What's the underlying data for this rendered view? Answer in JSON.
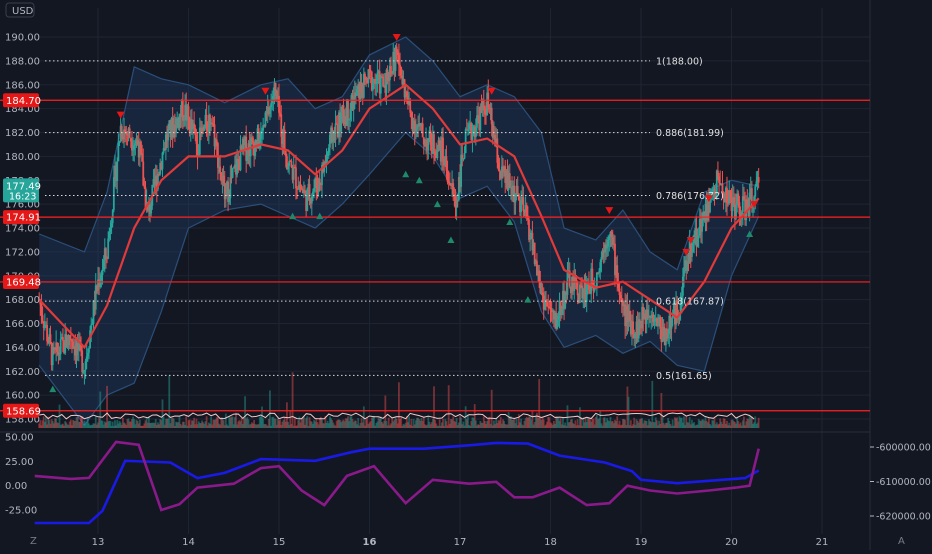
{
  "colors": {
    "background": "#131722",
    "grid": "#1f2433",
    "up": "#26a69a",
    "down": "#ef5350",
    "band_fill": "#1e3a5f",
    "band_line": "#2a4f7a",
    "ma": "#e03a3a",
    "level_line": "#ff2020",
    "fib_line": "#d8d8d8",
    "axis_text": "#b2b5be",
    "blue_series": "#1a1ae6",
    "purple_series": "#8a1a8a",
    "price_tag_green": "#26a69a",
    "price_tag_red": "#e51717"
  },
  "currency_label": "USD",
  "price_axis": {
    "ticks": [
      "190.00",
      "188.00",
      "186.00",
      "184.00",
      "182.00",
      "180.00",
      "178.00",
      "176.00",
      "174.00",
      "172.00",
      "170.00",
      "168.00",
      "166.00",
      "164.00",
      "162.00",
      "160.00",
      "158.00"
    ],
    "current_price": "177.49",
    "countdown": "16:23",
    "level_tags": [
      "184.70",
      "174.91",
      "169.48",
      "158.69"
    ]
  },
  "fib_labels": [
    "1(188.00)",
    "0.886(181.99)",
    "0.786(176.72)",
    "0.618(167.87)",
    "0.5(161.65)"
  ],
  "indicator_axis_left": [
    "50.00",
    "25.00",
    "0.00",
    "-25.00"
  ],
  "indicator_axis_right": [
    "-600000.00",
    "-610000.00",
    "-620000.00"
  ],
  "time_axis": [
    "13",
    "14",
    "15",
    "16",
    "17",
    "18",
    "19",
    "20",
    "21"
  ],
  "corner_left": "Z",
  "corner_right": "A",
  "chart_data": {
    "type": "candlestick",
    "x_labels": [
      "13",
      "14",
      "15",
      "16",
      "17",
      "18",
      "19",
      "20",
      "21"
    ],
    "ylim": [
      157.5,
      191
    ],
    "close_path": [
      {
        "x": 12.35,
        "y": 168.0
      },
      {
        "x": 12.5,
        "y": 163.0
      },
      {
        "x": 12.7,
        "y": 165.0
      },
      {
        "x": 12.85,
        "y": 162.5
      },
      {
        "x": 13.0,
        "y": 169.5
      },
      {
        "x": 13.1,
        "y": 172.0
      },
      {
        "x": 13.25,
        "y": 182.5
      },
      {
        "x": 13.45,
        "y": 181.0
      },
      {
        "x": 13.55,
        "y": 175.0
      },
      {
        "x": 13.75,
        "y": 181.5
      },
      {
        "x": 13.95,
        "y": 184.0
      },
      {
        "x": 14.1,
        "y": 181.0
      },
      {
        "x": 14.25,
        "y": 183.5
      },
      {
        "x": 14.4,
        "y": 176.5
      },
      {
        "x": 14.6,
        "y": 180.5
      },
      {
        "x": 14.8,
        "y": 181.5
      },
      {
        "x": 14.95,
        "y": 185.5
      },
      {
        "x": 15.1,
        "y": 179.5
      },
      {
        "x": 15.3,
        "y": 176.5
      },
      {
        "x": 15.45,
        "y": 178.0
      },
      {
        "x": 15.6,
        "y": 182.0
      },
      {
        "x": 15.85,
        "y": 185.0
      },
      {
        "x": 16.0,
        "y": 186.5
      },
      {
        "x": 16.15,
        "y": 186.0
      },
      {
        "x": 16.3,
        "y": 188.5
      },
      {
        "x": 16.45,
        "y": 183.5
      },
      {
        "x": 16.6,
        "y": 181.5
      },
      {
        "x": 16.8,
        "y": 180.5
      },
      {
        "x": 16.95,
        "y": 176.0
      },
      {
        "x": 17.05,
        "y": 181.0
      },
      {
        "x": 17.3,
        "y": 184.5
      },
      {
        "x": 17.45,
        "y": 178.5
      },
      {
        "x": 17.6,
        "y": 177.0
      },
      {
        "x": 17.75,
        "y": 174.5
      },
      {
        "x": 17.9,
        "y": 168.5
      },
      {
        "x": 18.05,
        "y": 166.0
      },
      {
        "x": 18.2,
        "y": 169.5
      },
      {
        "x": 18.35,
        "y": 168.5
      },
      {
        "x": 18.5,
        "y": 170.0
      },
      {
        "x": 18.65,
        "y": 174.0
      },
      {
        "x": 18.8,
        "y": 167.0
      },
      {
        "x": 18.95,
        "y": 165.5
      },
      {
        "x": 19.1,
        "y": 167.5
      },
      {
        "x": 19.25,
        "y": 165.0
      },
      {
        "x": 19.4,
        "y": 167.0
      },
      {
        "x": 19.55,
        "y": 172.5
      },
      {
        "x": 19.7,
        "y": 175.0
      },
      {
        "x": 19.85,
        "y": 178.0
      },
      {
        "x": 20.0,
        "y": 176.0
      },
      {
        "x": 20.15,
        "y": 175.5
      },
      {
        "x": 20.3,
        "y": 177.5
      }
    ],
    "moving_average": [
      {
        "x": 12.35,
        "y": 168.0
      },
      {
        "x": 12.85,
        "y": 164.0
      },
      {
        "x": 13.1,
        "y": 167.5
      },
      {
        "x": 13.4,
        "y": 174.0
      },
      {
        "x": 13.7,
        "y": 178.0
      },
      {
        "x": 14.0,
        "y": 180.0
      },
      {
        "x": 14.4,
        "y": 180.0
      },
      {
        "x": 14.8,
        "y": 181.0
      },
      {
        "x": 15.1,
        "y": 180.5
      },
      {
        "x": 15.4,
        "y": 178.5
      },
      {
        "x": 15.7,
        "y": 180.5
      },
      {
        "x": 16.0,
        "y": 184.0
      },
      {
        "x": 16.4,
        "y": 186.0
      },
      {
        "x": 16.7,
        "y": 184.0
      },
      {
        "x": 17.0,
        "y": 181.0
      },
      {
        "x": 17.3,
        "y": 181.5
      },
      {
        "x": 17.6,
        "y": 180.0
      },
      {
        "x": 17.9,
        "y": 175.0
      },
      {
        "x": 18.15,
        "y": 170.5
      },
      {
        "x": 18.5,
        "y": 169.0
      },
      {
        "x": 18.8,
        "y": 169.5
      },
      {
        "x": 19.1,
        "y": 168.0
      },
      {
        "x": 19.4,
        "y": 166.5
      },
      {
        "x": 19.7,
        "y": 169.5
      },
      {
        "x": 20.0,
        "y": 174.0
      },
      {
        "x": 20.3,
        "y": 176.5
      }
    ],
    "band_upper": [
      {
        "x": 12.35,
        "y": 173.5
      },
      {
        "x": 12.85,
        "y": 172.0
      },
      {
        "x": 13.1,
        "y": 177.0
      },
      {
        "x": 13.4,
        "y": 187.5
      },
      {
        "x": 13.7,
        "y": 186.5
      },
      {
        "x": 14.0,
        "y": 186.0
      },
      {
        "x": 14.4,
        "y": 184.5
      },
      {
        "x": 14.8,
        "y": 186.0
      },
      {
        "x": 15.1,
        "y": 186.5
      },
      {
        "x": 15.4,
        "y": 184.0
      },
      {
        "x": 15.7,
        "y": 185.0
      },
      {
        "x": 16.0,
        "y": 188.5
      },
      {
        "x": 16.4,
        "y": 190.0
      },
      {
        "x": 16.7,
        "y": 188.0
      },
      {
        "x": 17.0,
        "y": 185.0
      },
      {
        "x": 17.3,
        "y": 186.0
      },
      {
        "x": 17.6,
        "y": 185.0
      },
      {
        "x": 17.9,
        "y": 182.0
      },
      {
        "x": 18.15,
        "y": 174.0
      },
      {
        "x": 18.5,
        "y": 173.0
      },
      {
        "x": 18.8,
        "y": 175.5
      },
      {
        "x": 19.1,
        "y": 172.0
      },
      {
        "x": 19.4,
        "y": 170.5
      },
      {
        "x": 19.7,
        "y": 177.0
      },
      {
        "x": 20.0,
        "y": 178.0
      },
      {
        "x": 20.3,
        "y": 177.5
      }
    ],
    "band_lower": [
      {
        "x": 12.35,
        "y": 162.5
      },
      {
        "x": 12.85,
        "y": 157.5
      },
      {
        "x": 13.1,
        "y": 160.0
      },
      {
        "x": 13.4,
        "y": 161.0
      },
      {
        "x": 13.7,
        "y": 167.0
      },
      {
        "x": 14.0,
        "y": 174.0
      },
      {
        "x": 14.4,
        "y": 175.5
      },
      {
        "x": 14.8,
        "y": 176.0
      },
      {
        "x": 15.1,
        "y": 175.0
      },
      {
        "x": 15.4,
        "y": 174.0
      },
      {
        "x": 15.7,
        "y": 176.0
      },
      {
        "x": 16.0,
        "y": 178.5
      },
      {
        "x": 16.4,
        "y": 182.0
      },
      {
        "x": 16.7,
        "y": 180.0
      },
      {
        "x": 17.0,
        "y": 176.5
      },
      {
        "x": 17.3,
        "y": 177.5
      },
      {
        "x": 17.6,
        "y": 174.5
      },
      {
        "x": 17.9,
        "y": 167.0
      },
      {
        "x": 18.15,
        "y": 164.0
      },
      {
        "x": 18.5,
        "y": 165.0
      },
      {
        "x": 18.8,
        "y": 163.5
      },
      {
        "x": 19.1,
        "y": 164.5
      },
      {
        "x": 19.4,
        "y": 162.5
      },
      {
        "x": 19.7,
        "y": 162.0
      },
      {
        "x": 20.0,
        "y": 170.0
      },
      {
        "x": 20.3,
        "y": 175.0
      }
    ],
    "horizontal_levels": [
      184.7,
      174.91,
      169.48,
      158.69
    ],
    "fib_levels": [
      188.0,
      181.99,
      176.72,
      167.87,
      161.65
    ],
    "sell_markers": [
      {
        "x": 13.25,
        "y": 183.5
      },
      {
        "x": 14.85,
        "y": 185.5
      },
      {
        "x": 16.3,
        "y": 190.0
      },
      {
        "x": 17.35,
        "y": 185.5
      },
      {
        "x": 18.65,
        "y": 175.5
      },
      {
        "x": 19.5,
        "y": 172.0
      },
      {
        "x": 19.55,
        "y": 173.0
      },
      {
        "x": 19.75,
        "y": 176.5
      },
      {
        "x": 20.25,
        "y": 176.0
      }
    ],
    "buy_markers": [
      {
        "x": 12.5,
        "y": 160.5
      },
      {
        "x": 15.15,
        "y": 175.0
      },
      {
        "x": 15.45,
        "y": 175.0
      },
      {
        "x": 16.4,
        "y": 178.5
      },
      {
        "x": 16.55,
        "y": 178.0
      },
      {
        "x": 16.75,
        "y": 176.0
      },
      {
        "x": 16.9,
        "y": 173.0
      },
      {
        "x": 17.55,
        "y": 174.5
      },
      {
        "x": 17.75,
        "y": 168.0
      },
      {
        "x": 20.2,
        "y": 173.5
      }
    ],
    "indicator": {
      "ylim_left": [
        -35,
        55
      ],
      "ylim_right": [
        -623000,
        -597000
      ],
      "blue_series": [
        {
          "x": 12.3,
          "y": -625000
        },
        {
          "x": 12.9,
          "y": -625000
        },
        {
          "x": 13.05,
          "y": -618500
        },
        {
          "x": 13.3,
          "y": -604000
        },
        {
          "x": 13.8,
          "y": -604500
        },
        {
          "x": 14.1,
          "y": -609000
        },
        {
          "x": 14.4,
          "y": -607500
        },
        {
          "x": 14.8,
          "y": -603500
        },
        {
          "x": 15.4,
          "y": -604000
        },
        {
          "x": 15.8,
          "y": -601500
        },
        {
          "x": 16.0,
          "y": -600500
        },
        {
          "x": 16.6,
          "y": -600500
        },
        {
          "x": 17.1,
          "y": -599500
        },
        {
          "x": 17.4,
          "y": -598800
        },
        {
          "x": 17.75,
          "y": -599000
        },
        {
          "x": 18.1,
          "y": -602500
        },
        {
          "x": 18.6,
          "y": -604500
        },
        {
          "x": 18.9,
          "y": -607000
        },
        {
          "x": 19.0,
          "y": -609500
        },
        {
          "x": 19.4,
          "y": -610500
        },
        {
          "x": 19.75,
          "y": -609800
        },
        {
          "x": 20.15,
          "y": -609000
        },
        {
          "x": 20.3,
          "y": -606800
        }
      ],
      "purple_series": [
        {
          "x": 12.3,
          "y": 10
        },
        {
          "x": 12.7,
          "y": 7
        },
        {
          "x": 12.9,
          "y": 8
        },
        {
          "x": 13.2,
          "y": 45
        },
        {
          "x": 13.45,
          "y": 42
        },
        {
          "x": 13.7,
          "y": -25
        },
        {
          "x": 13.9,
          "y": -19
        },
        {
          "x": 14.1,
          "y": -2
        },
        {
          "x": 14.5,
          "y": 2
        },
        {
          "x": 14.8,
          "y": 18
        },
        {
          "x": 15.0,
          "y": 20
        },
        {
          "x": 15.25,
          "y": -5
        },
        {
          "x": 15.5,
          "y": -20
        },
        {
          "x": 15.75,
          "y": 10
        },
        {
          "x": 16.05,
          "y": 20
        },
        {
          "x": 16.4,
          "y": -18
        },
        {
          "x": 16.7,
          "y": 6
        },
        {
          "x": 17.1,
          "y": 2
        },
        {
          "x": 17.4,
          "y": 4
        },
        {
          "x": 17.6,
          "y": -12
        },
        {
          "x": 17.8,
          "y": -12
        },
        {
          "x": 18.1,
          "y": -2
        },
        {
          "x": 18.4,
          "y": -20
        },
        {
          "x": 18.65,
          "y": -18
        },
        {
          "x": 18.85,
          "y": 0
        },
        {
          "x": 19.1,
          "y": -5
        },
        {
          "x": 19.4,
          "y": -8
        },
        {
          "x": 19.75,
          "y": -5
        },
        {
          "x": 20.05,
          "y": -2
        },
        {
          "x": 20.2,
          "y": 0
        },
        {
          "x": 20.3,
          "y": 38
        }
      ]
    }
  }
}
